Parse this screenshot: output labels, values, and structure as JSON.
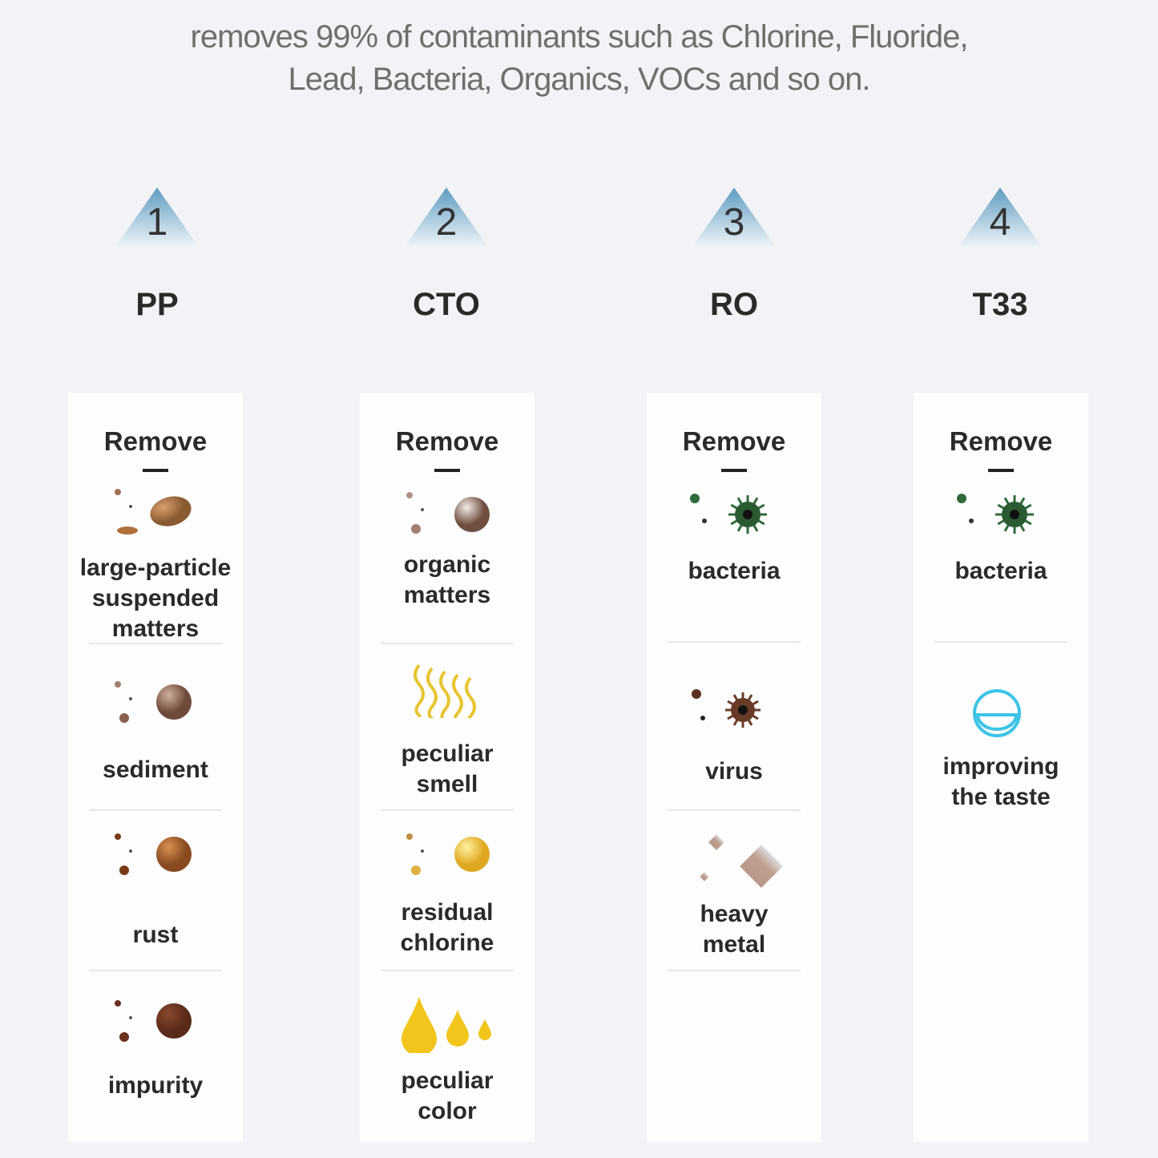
{
  "headline": {
    "line1": "removes 99% of contaminants such as Chlorine, Fluoride,",
    "line2": "Lead, Bacteria, Organics, VOCs and so on."
  },
  "colors": {
    "triangle": "#7fb0cc",
    "background": "#f2f3f6",
    "panel": "#fdfdfe",
    "taste_icon": "#3cc4e6"
  },
  "filters": [
    {
      "step": "1",
      "name": "PP",
      "remove_label": "Remove",
      "items": [
        {
          "label": "large-particle\nsuspended\nmatters",
          "icon": "brown-particles-icon"
        },
        {
          "label": "sediment",
          "icon": "sediment-particles-icon"
        },
        {
          "label": "rust",
          "icon": "rust-particles-icon"
        },
        {
          "label": "impurity",
          "icon": "impurity-particles-icon"
        }
      ]
    },
    {
      "step": "2",
      "name": "CTO",
      "remove_label": "Remove",
      "items": [
        {
          "label": "organic\nmatters",
          "icon": "organic-particles-icon"
        },
        {
          "label": "peculiar\nsmell",
          "icon": "smell-waves-icon"
        },
        {
          "label": "residual\nchlorine",
          "icon": "chlorine-particles-icon"
        },
        {
          "label": "peculiar\ncolor",
          "icon": "yellow-drops-icon"
        }
      ]
    },
    {
      "step": "3",
      "name": "RO",
      "remove_label": "Remove",
      "items": [
        {
          "label": "bacteria",
          "icon": "bacteria-icon"
        },
        {
          "label": "virus",
          "icon": "virus-icon"
        },
        {
          "label": "heavy\nmetal",
          "icon": "metal-diamonds-icon"
        }
      ]
    },
    {
      "step": "4",
      "name": "T33",
      "remove_label": "Remove",
      "items": [
        {
          "label": "bacteria",
          "icon": "bacteria-icon"
        },
        {
          "label": "improving\nthe taste",
          "icon": "smile-icon"
        }
      ]
    }
  ]
}
